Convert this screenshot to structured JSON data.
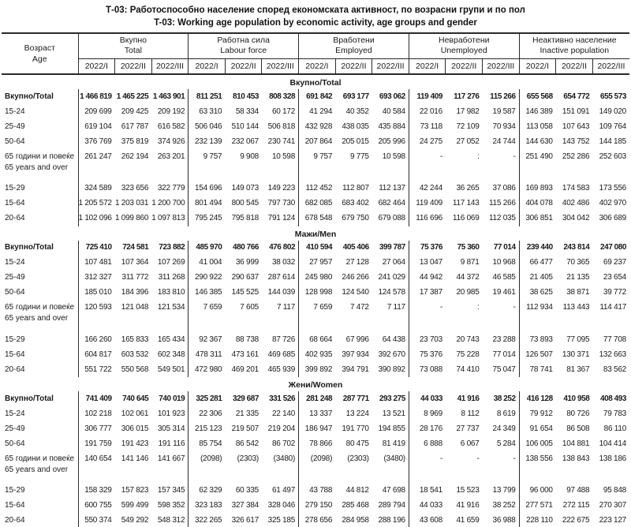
{
  "titles": {
    "line1": "Т-03: Работоспособно население според економската активност, по возрасни групи и по пол",
    "line2": "T-03: Working age population by economic activity, age groups and gender"
  },
  "colors": {
    "border": "#2a2a2a",
    "text": "#1a1a1a",
    "background": "#ffffff"
  },
  "header": {
    "age_label_mk": "Возраст",
    "age_label_en": "Age",
    "groups": [
      {
        "mk": "Вкупно",
        "en": "Total"
      },
      {
        "mk": "Работна сила",
        "en": "Labour force"
      },
      {
        "mk": "Вработени",
        "en": "Employed"
      },
      {
        "mk": "Невработени",
        "en": "Unemployed"
      },
      {
        "mk": "Неактивно население",
        "en": "Inactive population"
      }
    ],
    "periods": [
      "2022/I",
      "2022/II",
      "2022/III"
    ]
  },
  "sections": [
    {
      "title": "Вкупно/Total",
      "rows": [
        {
          "label": "Вкупно/Total",
          "bold": true,
          "values": [
            "1 466 819",
            "1 465 225",
            "1 463 901",
            "811 251",
            "810 453",
            "808 328",
            "691 842",
            "693 177",
            "693 062",
            "119 409",
            "117 276",
            "115 266",
            "655 568",
            "654 772",
            "655 573"
          ]
        },
        {
          "label": "15-24",
          "values": [
            "209 699",
            "209 425",
            "209 192",
            "63 310",
            "58 334",
            "60 172",
            "41 294",
            "40 352",
            "40 584",
            "22 016",
            "17 982",
            "19 587",
            "146 389",
            "151 091",
            "149 020"
          ]
        },
        {
          "label": "25-49",
          "values": [
            "619 104",
            "617 787",
            "616 582",
            "506 046",
            "510 144",
            "506 818",
            "432 928",
            "438 035",
            "435 884",
            "73 118",
            "72 109",
            "70 934",
            "113 058",
            "107 643",
            "109 764"
          ]
        },
        {
          "label": "50-64",
          "values": [
            "376 769",
            "375 819",
            "374 926",
            "232 139",
            "232 067",
            "230 741",
            "207 864",
            "205 015",
            "205 996",
            "24 275",
            "27 052",
            "24 744",
            "144 630",
            "143 752",
            "144 185"
          ]
        },
        {
          "label": "65 години и повеќе",
          "label2": "65 years and over",
          "values": [
            "261 247",
            "262 194",
            "263 201",
            "9 757",
            "9 908",
            "10 598",
            "9 757",
            "9 775",
            "10 598",
            "-",
            ":",
            "-",
            "251 490",
            "252 286",
            "252 603"
          ]
        },
        {
          "label": "15-29",
          "gap": true,
          "values": [
            "324 589",
            "323 656",
            "322 779",
            "154 696",
            "149 073",
            "149 223",
            "112 452",
            "112 807",
            "112 137",
            "42 244",
            "36 265",
            "37 086",
            "169 893",
            "174 583",
            "173 556"
          ]
        },
        {
          "label": "15-64",
          "values": [
            "1 205 572",
            "1 203 031",
            "1 200 700",
            "801 494",
            "800 545",
            "797 730",
            "682 085",
            "683 402",
            "682 464",
            "119 409",
            "117 143",
            "115 266",
            "404 078",
            "402 486",
            "402 970"
          ]
        },
        {
          "label": "20-64",
          "values": [
            "1 102 096",
            "1 099 860",
            "1 097 813",
            "795 245",
            "795 818",
            "791 124",
            "678 548",
            "679 750",
            "679 088",
            "116 696",
            "116 069",
            "112 035",
            "306 851",
            "304 042",
            "306 689"
          ]
        }
      ]
    },
    {
      "title": "Мажи/Men",
      "rows": [
        {
          "label": "Вкупно/Total",
          "bold": true,
          "values": [
            "725 410",
            "724 581",
            "723 882",
            "485 970",
            "480 766",
            "476 802",
            "410 594",
            "405 406",
            "399 787",
            "75 376",
            "75 360",
            "77 014",
            "239 440",
            "243 814",
            "247 080"
          ]
        },
        {
          "label": "15-24",
          "values": [
            "107 481",
            "107 364",
            "107 269",
            "41 004",
            "36 999",
            "38 032",
            "27 957",
            "27 128",
            "27 064",
            "13 047",
            "9 871",
            "10 968",
            "66 477",
            "70 365",
            "69 237"
          ]
        },
        {
          "label": "25-49",
          "values": [
            "312 327",
            "311 772",
            "311 268",
            "290 922",
            "290 637",
            "287 614",
            "245 980",
            "246 266",
            "241 029",
            "44 942",
            "44 372",
            "46 585",
            "21 405",
            "21 135",
            "23 654"
          ]
        },
        {
          "label": "50-64",
          "values": [
            "185 010",
            "184 396",
            "183 810",
            "146 385",
            "145 525",
            "144 039",
            "128 998",
            "124 540",
            "124 578",
            "17 387",
            "20 985",
            "19 461",
            "38 625",
            "38 871",
            "39 772"
          ]
        },
        {
          "label": "65 години и повеќе",
          "label2": "65 years and over",
          "values": [
            "120 593",
            "121 048",
            "121 534",
            "7 659",
            "7 605",
            "7 117",
            "7 659",
            "7 472",
            "7 117",
            "-",
            ":",
            "-",
            "112 934",
            "113 443",
            "114 417"
          ]
        },
        {
          "label": "15-29",
          "gap": true,
          "values": [
            "166 260",
            "165 833",
            "165 434",
            "92 367",
            "88 738",
            "87 726",
            "68 664",
            "67 996",
            "64 438",
            "23 703",
            "20 743",
            "23 288",
            "73 893",
            "77 095",
            "77 708"
          ]
        },
        {
          "label": "15-64",
          "values": [
            "604 817",
            "603 532",
            "602 348",
            "478 311",
            "473 161",
            "469 685",
            "402 935",
            "397 934",
            "392 670",
            "75 376",
            "75 228",
            "77 014",
            "126 507",
            "130 371",
            "132 663"
          ]
        },
        {
          "label": "20-64",
          "values": [
            "551 722",
            "550 568",
            "549 501",
            "472 980",
            "469 201",
            "465 939",
            "399 892",
            "394 791",
            "390 892",
            "73 088",
            "74 410",
            "75 047",
            "78 741",
            "81 367",
            "83 562"
          ]
        }
      ]
    },
    {
      "title": "Жени/Women",
      "rows": [
        {
          "label": "Вкупно/Total",
          "bold": true,
          "values": [
            "741 409",
            "740 645",
            "740 019",
            "325 281",
            "329 687",
            "331 526",
            "281 248",
            "287 771",
            "293 275",
            "44 033",
            "41 916",
            "38 252",
            "416 128",
            "410 958",
            "408 493"
          ]
        },
        {
          "label": "15-24",
          "values": [
            "102 218",
            "102 061",
            "101 923",
            "22 306",
            "21 335",
            "22 140",
            "13 337",
            "13 224",
            "13 521",
            "8 969",
            "8 112",
            "8 619",
            "79 912",
            "80 726",
            "79 783"
          ]
        },
        {
          "label": "25-49",
          "values": [
            "306 777",
            "306 015",
            "305 314",
            "215 123",
            "219 507",
            "219 204",
            "186 947",
            "191 770",
            "194 855",
            "28 176",
            "27 737",
            "24 349",
            "91 654",
            "86 508",
            "86 110"
          ]
        },
        {
          "label": "50-64",
          "values": [
            "191 759",
            "191 423",
            "191 116",
            "85 754",
            "86 542",
            "86 702",
            "78 866",
            "80 475",
            "81 419",
            "6 888",
            "6 067",
            "5 284",
            "106 005",
            "104 881",
            "104 414"
          ]
        },
        {
          "label": "65 години и повеќе",
          "label2": "65 years and over",
          "values": [
            "140 654",
            "141 146",
            "141 667",
            "(2098)",
            "(2303)",
            "(3480)",
            "(2098)",
            "(2303)",
            "(3480)",
            "-",
            "-",
            "-",
            "138 556",
            "138 843",
            "138 186"
          ]
        },
        {
          "label": "15-29",
          "gap": true,
          "values": [
            "158 329",
            "157 823",
            "157 345",
            "62 329",
            "60 335",
            "61 497",
            "43 788",
            "44 812",
            "47 698",
            "18 541",
            "15 523",
            "13 799",
            "96 000",
            "97 488",
            "95 848"
          ]
        },
        {
          "label": "15-64",
          "values": [
            "600 755",
            "599 499",
            "598 352",
            "323 183",
            "327 384",
            "328 046",
            "279 150",
            "285 468",
            "289 794",
            "44 033",
            "41 916",
            "38 252",
            "277 571",
            "272 115",
            "270 307"
          ]
        },
        {
          "label": "20-64",
          "values": [
            "550 374",
            "549 292",
            "548 312",
            "322 265",
            "326 617",
            "325 185",
            "278 656",
            "284 958",
            "288 196",
            "43 608",
            "41 659",
            "36 988",
            "228 110",
            "222 675",
            "223 127"
          ]
        }
      ]
    }
  ]
}
